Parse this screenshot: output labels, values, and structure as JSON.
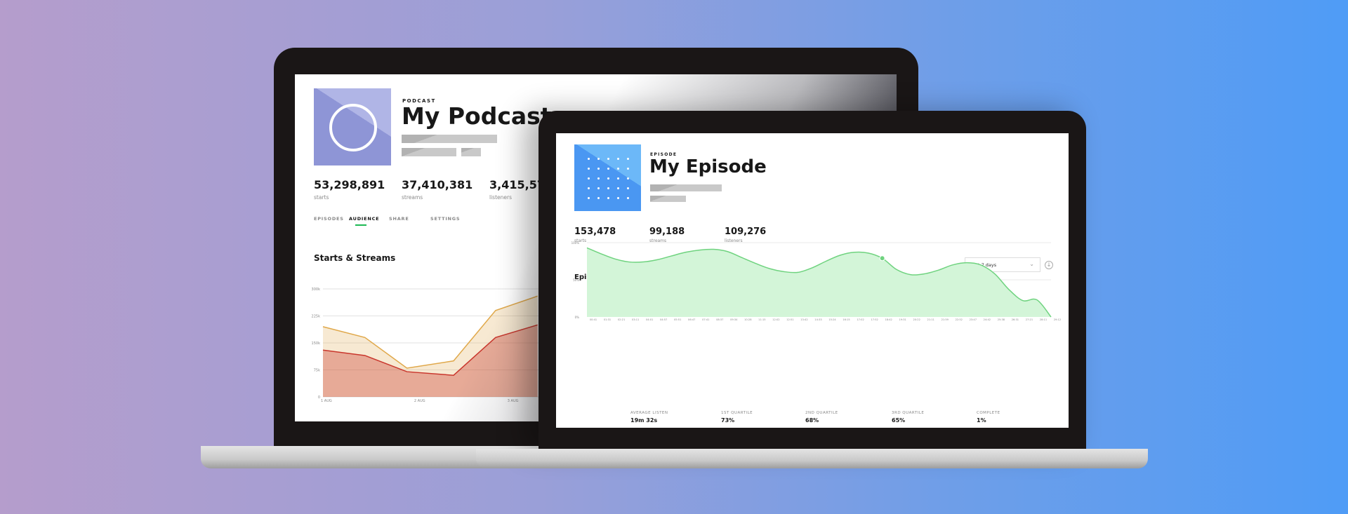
{
  "podcast": {
    "type_label": "PODCAST",
    "title": "My Podcast",
    "stats": [
      {
        "value": "53,298,891",
        "label": "starts"
      },
      {
        "value": "37,410,381",
        "label": "streams"
      },
      {
        "value": "3,415,575",
        "label": "listeners"
      }
    ],
    "tabs": [
      {
        "label": "EPISODES",
        "active": false
      },
      {
        "label": "AUDIENCE",
        "active": true
      },
      {
        "label": "SHARE",
        "active": false
      },
      {
        "label": "SETTINGS",
        "active": false
      }
    ],
    "artwork_color": "#8e95d6",
    "accent": "#1db954"
  },
  "episode": {
    "type_label": "EPISODE",
    "title": "My Episode",
    "stats": [
      {
        "value": "153,478",
        "label": "starts"
      },
      {
        "value": "99,188",
        "label": "streams"
      },
      {
        "value": "109,276",
        "label": "listeners"
      }
    ],
    "range_select": {
      "value": "Last 7 days"
    },
    "summary": [
      {
        "label": "AVERAGE LISTEN",
        "value": "19m 32s"
      },
      {
        "label": "1ST QUARTILE",
        "value": "73%"
      },
      {
        "label": "2ND QUARTILE",
        "value": "68%"
      },
      {
        "label": "3RD QUARTILE",
        "value": "65%"
      },
      {
        "label": "COMPLETE",
        "value": "1%"
      }
    ],
    "artwork_color": "#4a97f2"
  },
  "chart_data": [
    {
      "type": "area",
      "title": "Starts & Streams",
      "x_ticks": [
        "1 AUG",
        "2 AUG",
        "3 AUG"
      ],
      "y_ticks": [
        "0",
        "75k",
        "150k",
        "225k",
        "300k"
      ],
      "ylim": [
        0,
        300000
      ],
      "x": [
        1.0,
        1.45,
        1.9,
        2.4,
        2.85,
        3.3
      ],
      "series": [
        {
          "color": "#e0a84a",
          "values": [
            195000,
            165000,
            80000,
            100000,
            240000,
            280000
          ]
        },
        {
          "color": "#c9362c",
          "values": [
            130000,
            115000,
            70000,
            60000,
            165000,
            200000
          ]
        }
      ],
      "grid": true
    },
    {
      "type": "area",
      "title": "Episode Performance",
      "y_ticks": [
        "0%",
        "50%",
        "100%"
      ],
      "ylim": [
        0,
        100
      ],
      "color": "#6fd37f",
      "highlight": "18:42",
      "x": [
        "00:41",
        "01:31",
        "02:21",
        "03:11",
        "04:01",
        "04:57",
        "05:51",
        "06:47",
        "07:41",
        "08:37",
        "09:34",
        "10:28",
        "11:15",
        "12:02",
        "12:51",
        "13:42",
        "14:33",
        "15:24",
        "16:15",
        "17:02",
        "17:52",
        "18:42",
        "19:31",
        "20:22",
        "21:11",
        "21:59",
        "22:52",
        "23:47",
        "24:42",
        "25:38",
        "26:31",
        "27:21",
        "28:11",
        "29:12"
      ],
      "values": [
        93,
        85,
        78,
        74,
        74,
        77,
        82,
        87,
        90,
        91,
        88,
        80,
        72,
        65,
        61,
        60,
        66,
        75,
        83,
        87,
        86,
        79,
        64,
        57,
        58,
        63,
        70,
        73,
        70,
        58,
        37,
        22,
        23,
        0
      ],
      "grid": true
    }
  ]
}
